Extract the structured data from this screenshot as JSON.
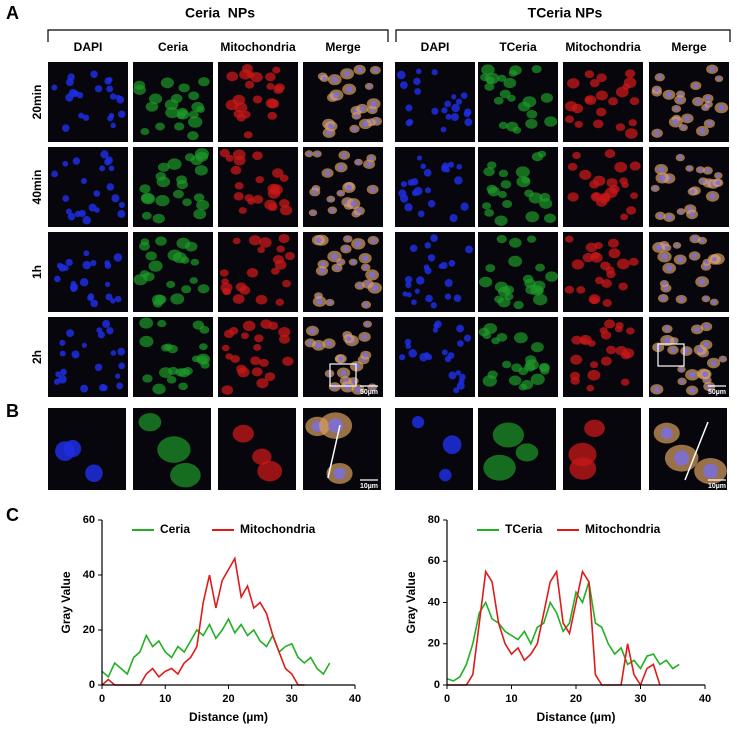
{
  "panel_labels": [
    "A",
    "B",
    "C"
  ],
  "groups": [
    "Ceria  NPs",
    "TCeria NPs"
  ],
  "columns": [
    "DAPI",
    "Ceria",
    "Mitochondria",
    "Merge",
    "DAPI",
    "TCeria",
    "Mitochondria",
    "Merge"
  ],
  "rows": [
    "20min",
    "40min",
    "1h",
    "2h"
  ],
  "scale_bars": [
    "50µm",
    "50µm",
    "10µm",
    "10µm"
  ],
  "chart_data": [
    {
      "type": "line",
      "xlabel": "Distance (µm)",
      "ylabel": "Gray Value",
      "x": [
        0,
        1,
        2,
        3,
        4,
        5,
        6,
        7,
        8,
        9,
        10,
        11,
        12,
        13,
        14,
        15,
        16,
        17,
        18,
        19,
        20,
        21,
        22,
        23,
        24,
        25,
        26,
        27,
        28,
        29,
        30,
        31,
        32,
        33,
        34,
        35,
        36,
        37
      ],
      "series": [
        {
          "name": "Ceria",
          "color": "#22b022",
          "values": [
            5,
            3,
            8,
            6,
            4,
            10,
            12,
            18,
            14,
            16,
            12,
            10,
            14,
            12,
            16,
            20,
            18,
            22,
            17,
            20,
            24,
            19,
            22,
            18,
            20,
            16,
            14,
            18,
            12,
            14,
            15,
            10,
            8,
            10,
            6,
            4,
            8,
            null
          ]
        },
        {
          "name": "Mitochondria",
          "color": "#e01a1a",
          "values": [
            0,
            2,
            0,
            0,
            0,
            0,
            0,
            4,
            6,
            3,
            5,
            6,
            4,
            8,
            10,
            14,
            30,
            40,
            28,
            38,
            42,
            46,
            32,
            36,
            28,
            30,
            26,
            18,
            12,
            6,
            4,
            0,
            0,
            null,
            null,
            null,
            null,
            null
          ]
        }
      ],
      "xlim": [
        0,
        40
      ],
      "ylim": [
        0,
        60
      ],
      "xticks": [
        0,
        10,
        20,
        30,
        40
      ],
      "yticks": [
        0,
        20,
        40,
        60
      ]
    },
    {
      "type": "line",
      "xlabel": "Distance (µm)",
      "ylabel": "Gray Value",
      "x": [
        0,
        1,
        2,
        3,
        4,
        5,
        6,
        7,
        8,
        9,
        10,
        11,
        12,
        13,
        14,
        15,
        16,
        17,
        18,
        19,
        20,
        21,
        22,
        23,
        24,
        25,
        26,
        27,
        28,
        29,
        30,
        31,
        32,
        33,
        34,
        35,
        36,
        37
      ],
      "series": [
        {
          "name": "TCeria",
          "color": "#22b022",
          "values": [
            3,
            2,
            4,
            10,
            20,
            35,
            40,
            32,
            30,
            26,
            24,
            22,
            26,
            20,
            28,
            30,
            40,
            35,
            26,
            30,
            45,
            40,
            50,
            30,
            28,
            20,
            15,
            18,
            10,
            12,
            8,
            14,
            15,
            10,
            12,
            8,
            10,
            null
          ]
        },
        {
          "name": "Mitochondria",
          "color": "#e01a1a",
          "values": [
            0,
            0,
            0,
            0,
            5,
            30,
            55,
            50,
            30,
            20,
            15,
            18,
            12,
            15,
            20,
            35,
            50,
            55,
            30,
            25,
            40,
            55,
            50,
            5,
            0,
            0,
            0,
            0,
            20,
            5,
            0,
            8,
            10,
            0,
            null,
            null,
            null,
            null
          ]
        }
      ],
      "xlim": [
        0,
        40
      ],
      "ylim": [
        0,
        80
      ],
      "xticks": [
        0,
        10,
        20,
        30,
        40
      ],
      "yticks": [
        0,
        20,
        40,
        60,
        80
      ]
    }
  ]
}
